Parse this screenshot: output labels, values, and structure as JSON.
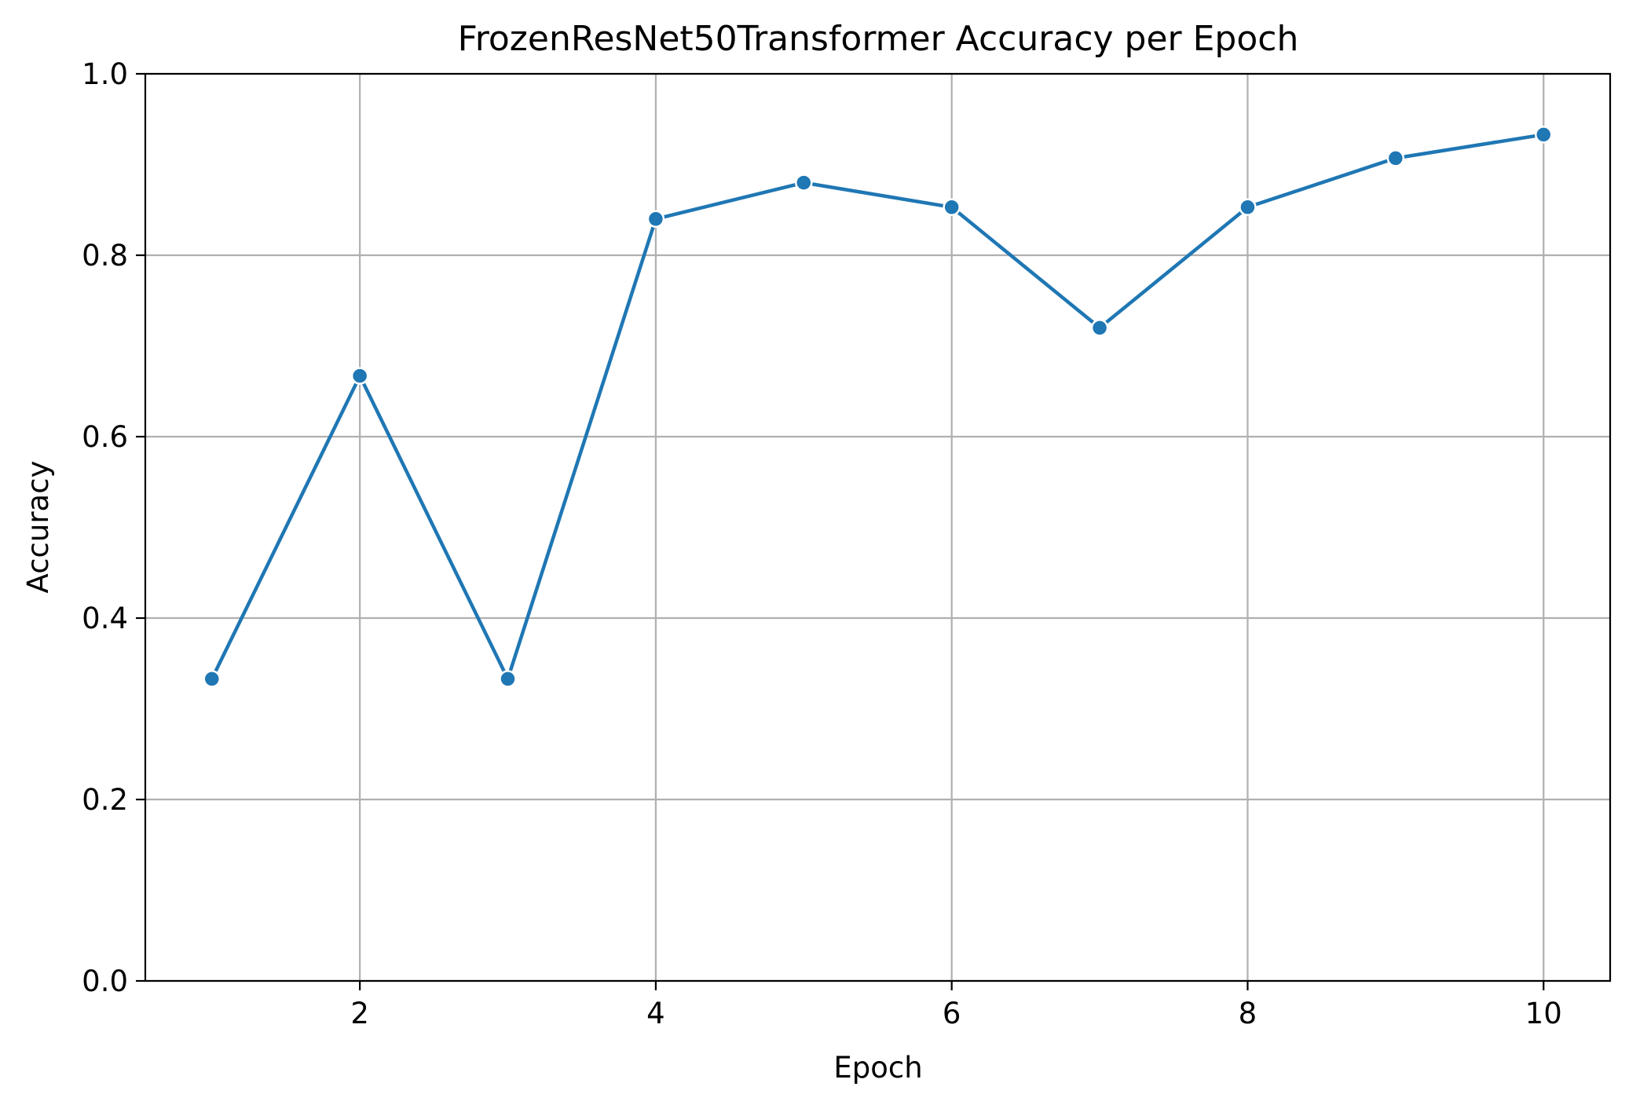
{
  "chart_data": {
    "type": "line",
    "title": "FrozenResNet50Transformer Accuracy per Epoch",
    "xlabel": "Epoch",
    "ylabel": "Accuracy",
    "x": [
      1,
      2,
      3,
      4,
      5,
      6,
      7,
      8,
      9,
      10
    ],
    "series": [
      {
        "values": [
          0.333,
          0.667,
          0.333,
          0.84,
          0.88,
          0.853,
          0.72,
          0.853,
          0.907,
          0.933
        ],
        "color": "#1f77b4",
        "marker": "circle"
      }
    ],
    "xlim": [
      0.55,
      10.45
    ],
    "ylim": [
      0.0,
      1.0
    ],
    "xticks": [
      "2",
      "4",
      "6",
      "8",
      "10"
    ],
    "xtick_values": [
      2,
      4,
      6,
      8,
      10
    ],
    "yticks": [
      "0.0",
      "0.2",
      "0.4",
      "0.6",
      "0.8",
      "1.0"
    ],
    "ytick_values": [
      0.0,
      0.2,
      0.4,
      0.6,
      0.8,
      1.0
    ],
    "grid": true,
    "legend": "none"
  }
}
